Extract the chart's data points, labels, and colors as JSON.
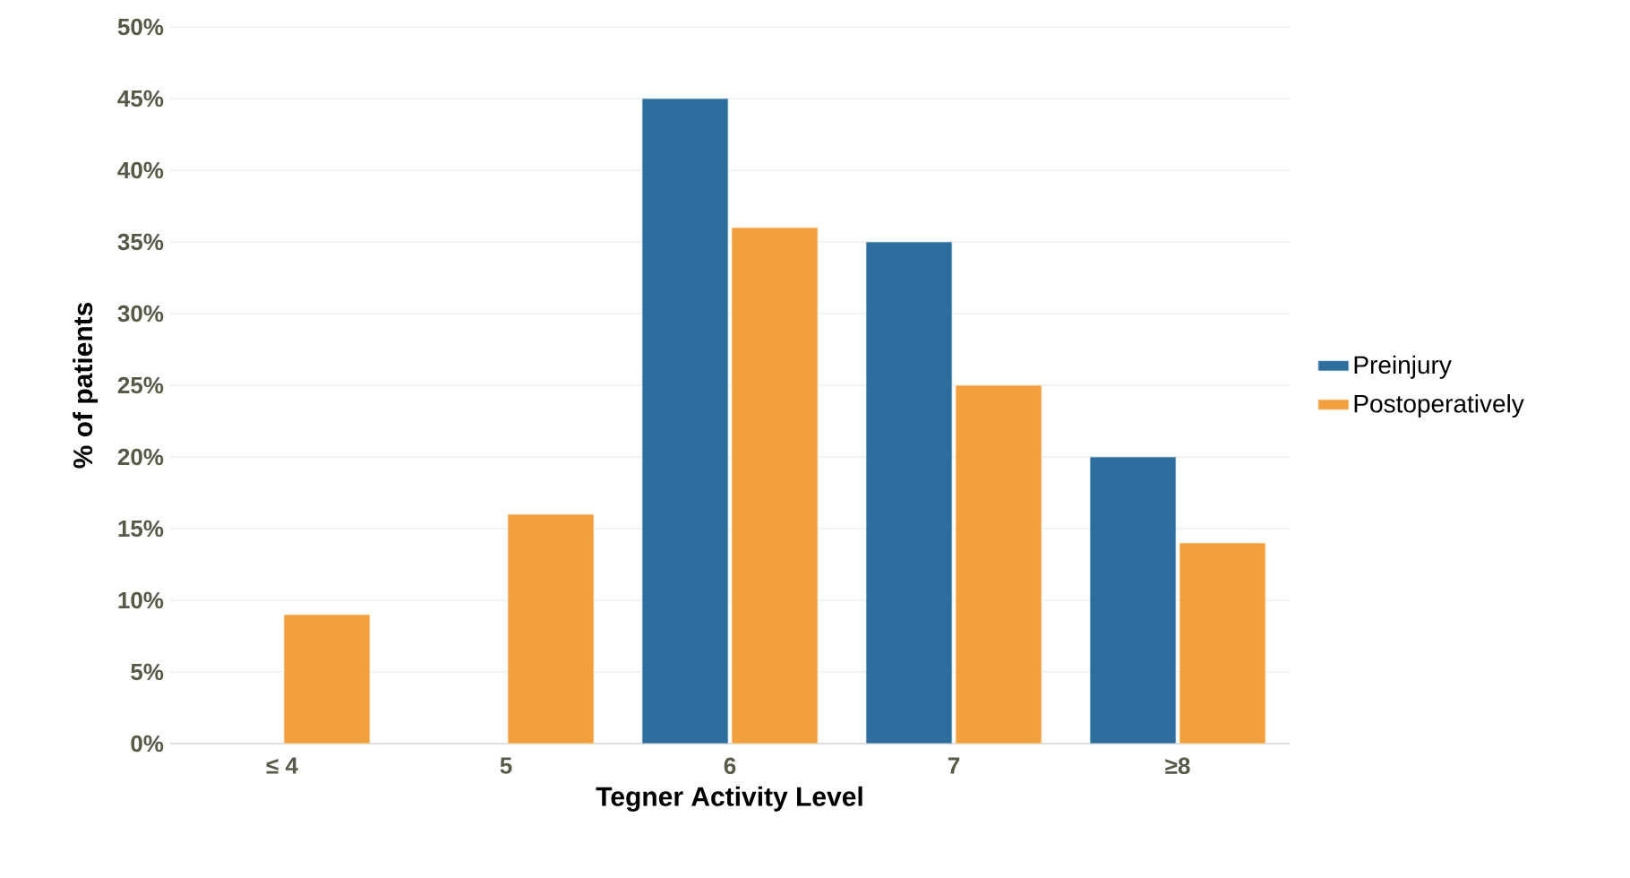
{
  "chart_data": {
    "type": "bar",
    "xlabel": "Tegner Activity Level",
    "ylabel": "% of patients",
    "categories": [
      "≤ 4",
      "5",
      "6",
      "7",
      "≥8"
    ],
    "series": [
      {
        "name": "Preinjury",
        "color": "#2e6e9e",
        "values": [
          null,
          null,
          45,
          35,
          20
        ]
      },
      {
        "name": "Postoperatively",
        "color": "#f2a03d",
        "values": [
          9,
          16,
          36,
          25,
          14
        ]
      }
    ],
    "ylim": [
      0,
      50
    ],
    "yticks": [
      {
        "value": 0,
        "label": "0%"
      },
      {
        "value": 5,
        "label": "5%"
      },
      {
        "value": 10,
        "label": "10%"
      },
      {
        "value": 15,
        "label": "15%"
      },
      {
        "value": 20,
        "label": "20%"
      },
      {
        "value": 25,
        "label": "25%"
      },
      {
        "value": 30,
        "label": "30%"
      },
      {
        "value": 35,
        "label": "35%"
      },
      {
        "value": 40,
        "label": "40%"
      },
      {
        "value": 45,
        "label": "45%"
      },
      {
        "value": 50,
        "label": "50%"
      }
    ],
    "grid": "y",
    "legend": "right"
  }
}
